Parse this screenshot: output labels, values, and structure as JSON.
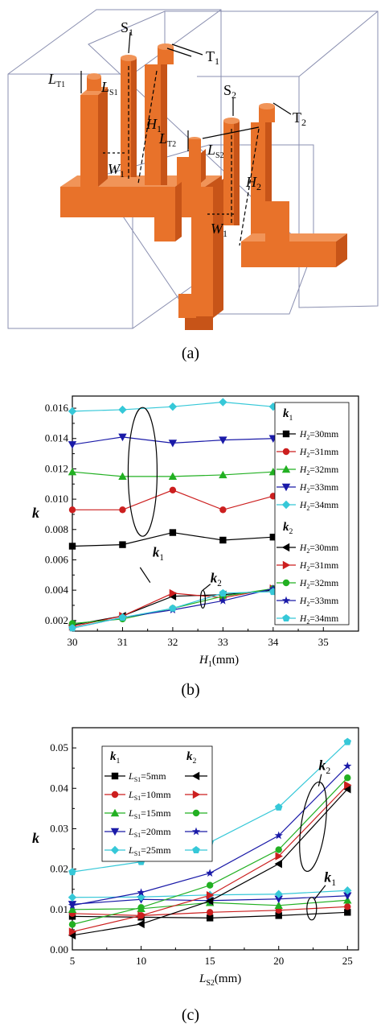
{
  "panel_a": {
    "caption": "(a)",
    "labels": {
      "s1": "S",
      "s1_sub": "1",
      "t1": "T",
      "t1_sub": "1",
      "s2": "S",
      "s2_sub": "2",
      "t2": "T",
      "t2_sub": "2",
      "lt1": "L",
      "lt1_sub": "T1",
      "ls1": "L",
      "ls1_sub": "S1",
      "h1": "H",
      "h1_sub": "1",
      "lt2": "L",
      "lt2_sub": "T2",
      "ls2": "L",
      "ls2_sub": "S2",
      "w1a": "W",
      "w1a_sub": "1",
      "h2": "H",
      "h2_sub": "2",
      "w1b": "W",
      "w1b_sub": "1"
    },
    "colors": {
      "resonator": "#e8722a",
      "resonator_dark": "#c75418",
      "box": "#8a8fb0"
    }
  },
  "chart_data": [
    {
      "type": "line",
      "caption": "(b)",
      "xlabel": "H",
      "xlabel_sub": "1",
      "xlabel_unit": "(mm)",
      "ylabel": "k",
      "xlim": [
        30,
        35.7
      ],
      "ylim": [
        0.0013,
        0.0168
      ],
      "xticks": [
        "30",
        "31",
        "32",
        "33",
        "34",
        "35"
      ],
      "yticks": [
        "0.002",
        "0.004",
        "0.006",
        "0.008",
        "0.010",
        "0.012",
        "0.014",
        "0.016"
      ],
      "x": [
        30,
        31,
        32,
        33,
        34
      ],
      "legend": {
        "group1_title": "k",
        "group1_sub": "1",
        "group2_title": "k",
        "group2_sub": "2",
        "entry_prefix": "H",
        "entry_sub": "2",
        "entries": [
          "=30mm",
          "=31mm",
          "=32mm",
          "=33mm",
          "=34mm"
        ]
      },
      "annotations": {
        "k1_label": "k",
        "k1_sub": "1",
        "k2_label": "k",
        "k2_sub": "2"
      },
      "series": [
        {
          "group": "k1",
          "marker": "square",
          "color": "#000000",
          "values": [
            0.0069,
            0.007,
            0.0078,
            0.0073,
            0.0075
          ]
        },
        {
          "group": "k1",
          "marker": "circle",
          "color": "#cc1f1f",
          "values": [
            0.0093,
            0.0093,
            0.0106,
            0.0093,
            0.0102
          ]
        },
        {
          "group": "k1",
          "marker": "triangle",
          "color": "#22b022",
          "values": [
            0.0118,
            0.0115,
            0.0115,
            0.0116,
            0.0118
          ]
        },
        {
          "group": "k1",
          "marker": "tri-down",
          "color": "#1a1aa8",
          "values": [
            0.0136,
            0.0141,
            0.0137,
            0.0139,
            0.014
          ]
        },
        {
          "group": "k1",
          "marker": "diamond",
          "color": "#36c8d8",
          "values": [
            0.0158,
            0.0159,
            0.0161,
            0.0164,
            0.0161
          ]
        },
        {
          "group": "k2",
          "marker": "tri-left",
          "color": "#000000",
          "values": [
            0.0017,
            0.0023,
            0.0036,
            0.0037,
            0.004
          ]
        },
        {
          "group": "k2",
          "marker": "tri-right",
          "color": "#cc1f1f",
          "values": [
            0.0016,
            0.0023,
            0.0038,
            0.0035,
            0.0041
          ]
        },
        {
          "group": "k2",
          "marker": "circle",
          "color": "#22b022",
          "values": [
            0.0018,
            0.0021,
            0.0028,
            0.0036,
            0.0041
          ]
        },
        {
          "group": "k2",
          "marker": "star",
          "color": "#1a1aa8",
          "values": [
            0.0015,
            0.0022,
            0.0027,
            0.0033,
            0.0041
          ]
        },
        {
          "group": "k2",
          "marker": "pentagon",
          "color": "#36c8d8",
          "values": [
            0.0015,
            0.0022,
            0.0028,
            0.0038,
            0.0039
          ]
        }
      ]
    },
    {
      "type": "line",
      "caption": "(c)",
      "xlabel": "L",
      "xlabel_sub": "S2",
      "xlabel_unit": "(mm)",
      "ylabel": "k",
      "xlim": [
        5,
        25.8
      ],
      "ylim": [
        0,
        0.055
      ],
      "xticks": [
        "5",
        "10",
        "15",
        "20",
        "25"
      ],
      "yticks": [
        "0.00",
        "0.01",
        "0.02",
        "0.03",
        "0.04",
        "0.05"
      ],
      "x": [
        5,
        10,
        15,
        20,
        25
      ],
      "legend": {
        "col1_title": "k",
        "col1_sub": "1",
        "col2_title": "k",
        "col2_sub": "2",
        "entry_prefix": "L",
        "entry_sub": "S1",
        "entries": [
          "=5mm",
          "=10mm",
          "=15mm",
          "=20mm",
          "=25mm"
        ]
      },
      "annotations": {
        "k1_label": "k",
        "k1_sub": "1",
        "k2_label": "k",
        "k2_sub": "2"
      },
      "series": [
        {
          "group": "k1",
          "marker": "square",
          "color": "#000000",
          "values": [
            0.0083,
            0.0081,
            0.0079,
            0.0085,
            0.0093
          ]
        },
        {
          "group": "k1",
          "marker": "circle",
          "color": "#cc1f1f",
          "values": [
            0.009,
            0.0085,
            0.0093,
            0.0098,
            0.0107
          ]
        },
        {
          "group": "k1",
          "marker": "triangle",
          "color": "#22b022",
          "values": [
            0.01,
            0.0102,
            0.0117,
            0.011,
            0.0123
          ]
        },
        {
          "group": "k1",
          "marker": "tri-down",
          "color": "#1a1aa8",
          "values": [
            0.0113,
            0.0125,
            0.0122,
            0.0126,
            0.0134
          ]
        },
        {
          "group": "k1",
          "marker": "diamond",
          "color": "#36c8d8",
          "values": [
            0.013,
            0.0131,
            0.0136,
            0.0138,
            0.0147
          ]
        },
        {
          "group": "k2",
          "marker": "tri-left",
          "color": "#000000",
          "values": [
            0.0036,
            0.0064,
            0.0121,
            0.0213,
            0.0398
          ]
        },
        {
          "group": "k2",
          "marker": "tri-right",
          "color": "#cc1f1f",
          "values": [
            0.0045,
            0.0085,
            0.0135,
            0.0232,
            0.0408
          ]
        },
        {
          "group": "k2",
          "marker": "circle",
          "color": "#22b022",
          "values": [
            0.0063,
            0.0105,
            0.016,
            0.0248,
            0.0426
          ]
        },
        {
          "group": "k2",
          "marker": "star",
          "color": "#1a1aa8",
          "values": [
            0.011,
            0.0142,
            0.019,
            0.0283,
            0.0455
          ]
        },
        {
          "group": "k2",
          "marker": "pentagon",
          "color": "#36c8d8",
          "values": [
            0.0193,
            0.0218,
            0.0266,
            0.0353,
            0.0515
          ]
        }
      ]
    }
  ]
}
